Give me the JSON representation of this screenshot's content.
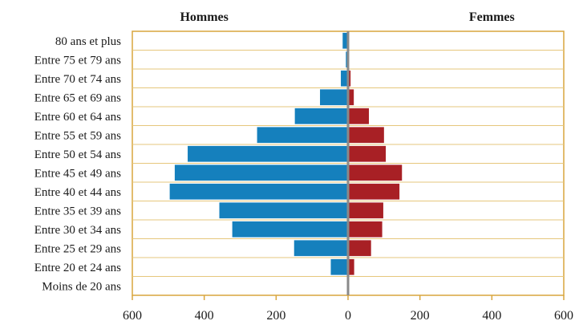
{
  "chart_data": {
    "type": "bar",
    "orientation": "horizontal-pyramid",
    "categories": [
      "80 ans et plus",
      "Entre 75 et 79 ans",
      "Entre 70 et 74 ans",
      "Entre 65 et 69 ans",
      "Entre 60 et 64 ans",
      "Entre 55 et 59 ans",
      "Entre 50 et 54 ans",
      "Entre 45 et 49 ans",
      "Entre 40 et 44 ans",
      "Entre 35 et 39 ans",
      "Entre 30 et 34 ans",
      "Entre 25 et 29 ans",
      "Entre 20 et 24 ans",
      "Moins de 20 ans"
    ],
    "series": [
      {
        "name": "Hommes",
        "side": "left",
        "color": "#1580bd",
        "values": [
          15,
          6,
          20,
          78,
          148,
          253,
          446,
          482,
          496,
          358,
          322,
          150,
          48,
          0
        ]
      },
      {
        "name": "Femmes",
        "side": "right",
        "color": "#a82025",
        "values": [
          0,
          0,
          7,
          16,
          58,
          100,
          105,
          150,
          143,
          98,
          95,
          64,
          17,
          0
        ]
      }
    ],
    "xlim": [
      -600,
      600
    ],
    "x_ticks": [
      "600",
      "400",
      "200",
      "0",
      "200",
      "400",
      "600"
    ],
    "grid": true,
    "legend": "column headers above plot",
    "frame_color": "#d9a53d",
    "grid_color": "#e6c77c",
    "axis_line_color": "#8a8a8a"
  }
}
